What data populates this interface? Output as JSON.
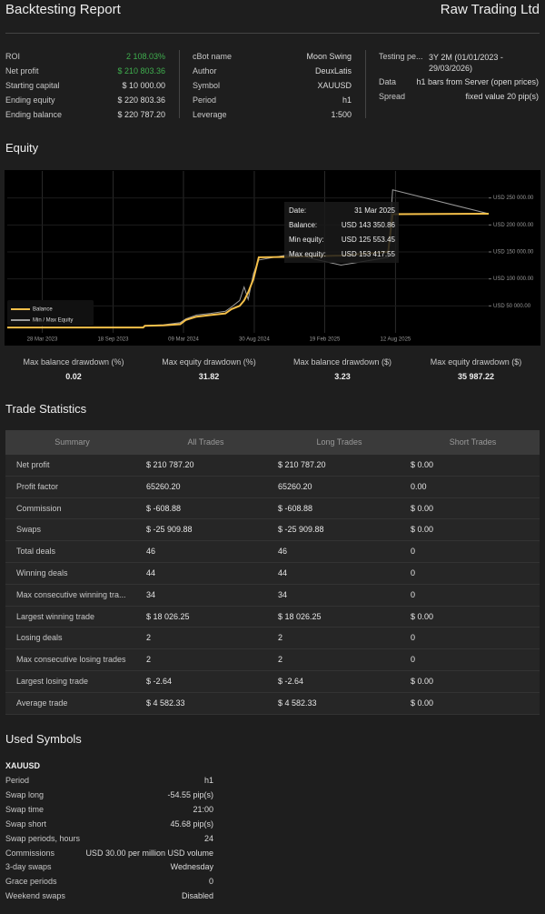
{
  "header": {
    "title": "Backtesting Report",
    "broker": "Raw Trading Ltd"
  },
  "summary": {
    "columns": [
      [
        [
          "ROI",
          "2 108.03%"
        ],
        [
          "Net profit",
          "$ 210 803.36"
        ],
        [
          "Starting capital",
          "$ 10 000.00"
        ],
        [
          "Ending equity",
          "$ 220 803.36"
        ],
        [
          "Ending balance",
          "$ 220 787.20"
        ]
      ],
      [
        [
          "cBot name",
          "Moon Swing"
        ],
        [
          "Author",
          "DeuxLatis"
        ],
        [
          "Symbol",
          "XAUUSD"
        ],
        [
          "Period",
          "h1"
        ],
        [
          "Leverage",
          "1:500"
        ]
      ],
      [
        [
          "Testing pe...",
          "3Y 2M (01/01/2023 - 29/03/2026)"
        ],
        [
          "Data",
          "h1 bars from Server (open prices)"
        ],
        [
          "Spread",
          "fixed value 20 pip(s)"
        ]
      ]
    ]
  },
  "equity_title": "Equity",
  "chart_data": {
    "type": "line",
    "x": [
      "2023-01-01",
      "2023-12-01",
      "2023-12-05",
      "2024-01-20",
      "2024-03-01",
      "2024-03-15",
      "2024-04-10",
      "2024-05-15",
      "2024-06-20",
      "2024-07-05",
      "2024-07-25",
      "2024-08-05",
      "2024-08-15",
      "2024-08-28",
      "2024-09-10",
      "2024-12-01",
      "2025-03-31",
      "2025-07-25",
      "2025-08-05",
      "2026-03-29"
    ],
    "series": [
      {
        "name": "Balance",
        "color": "#f5c04a",
        "values": [
          10000,
          10000,
          13000,
          14000,
          16000,
          24000,
          30000,
          33000,
          36000,
          44000,
          50000,
          60000,
          75000,
          100000,
          140000,
          141000,
          143350.86,
          150000,
          220000,
          220787.2
        ]
      },
      {
        "name": "Min / Max Equity",
        "color": "#9a9a9a",
        "values": [
          10000,
          10000,
          13500,
          15000,
          19000,
          26000,
          33000,
          36000,
          40000,
          48000,
          60000,
          85000,
          62000,
          110000,
          135000,
          146000,
          125553.45,
          140000,
          265000,
          220803.36
        ]
      }
    ],
    "xlim": [
      "2023-01-01",
      "2026-03-29"
    ],
    "xticks": [
      {
        "value": "2023-03-28",
        "label": "28 Mar 2023"
      },
      {
        "value": "2023-09-18",
        "label": "18 Sep 2023"
      },
      {
        "value": "2024-03-09",
        "label": "09 Mar 2024"
      },
      {
        "value": "2024-08-30",
        "label": "30 Aug 2024"
      },
      {
        "value": "2025-02-19",
        "label": "19 Feb 2025"
      },
      {
        "value": "2025-08-12",
        "label": "12 Aug 2025"
      }
    ],
    "ylim": [
      0,
      300000
    ],
    "yticks": [
      {
        "value": 50000,
        "label": "USD 50 000.00"
      },
      {
        "value": 100000,
        "label": "USD 100 000.00"
      },
      {
        "value": 150000,
        "label": "USD 150 000.00"
      },
      {
        "value": 200000,
        "label": "USD 200 000.00"
      },
      {
        "value": 250000,
        "label": "USD 250 000.00"
      }
    ],
    "grid": true,
    "legend": "lower-left",
    "tooltip": [
      [
        "Date:",
        "31 Mar 2025"
      ],
      [
        "Balance:",
        "USD 143 350.86"
      ],
      [
        "Min equity:",
        "USD 125 553.45"
      ],
      [
        "Max equity:",
        "USD 153 417.55"
      ]
    ]
  },
  "drawdowns": [
    [
      "Max balance drawdown (%)",
      "0.02"
    ],
    [
      "Max equity drawdown (%)",
      "31.82"
    ],
    [
      "Max balance drawdown ($)",
      "3.23"
    ],
    [
      "Max equity drawdown ($)",
      "35 987.22"
    ]
  ],
  "trade_statistics": {
    "title": "Trade Statistics",
    "columns": [
      "Summary",
      "All Trades",
      "Long Trades",
      "Short Trades"
    ],
    "rows": [
      [
        "Net profit",
        "$ 210 787.20",
        "$ 210 787.20",
        "$ 0.00"
      ],
      [
        "Profit factor",
        "65260.20",
        "65260.20",
        "0.00"
      ],
      [
        "Commission",
        "$ -608.88",
        "$ -608.88",
        "$ 0.00"
      ],
      [
        "Swaps",
        "$ -25 909.88",
        "$ -25 909.88",
        "$ 0.00"
      ],
      [
        "Total deals",
        "46",
        "46",
        "0"
      ],
      [
        "Winning deals",
        "44",
        "44",
        "0"
      ],
      [
        "Max consecutive winning tra...",
        "34",
        "34",
        "0"
      ],
      [
        "Largest winning trade",
        "$ 18 026.25",
        "$ 18 026.25",
        "$ 0.00"
      ],
      [
        "Losing deals",
        "2",
        "2",
        "0"
      ],
      [
        "Max consecutive losing trades",
        "2",
        "2",
        "0"
      ],
      [
        "Largest losing trade",
        "$ -2.64",
        "$ -2.64",
        "$ 0.00"
      ],
      [
        "Average trade",
        "$ 4 582.33",
        "$ 4 582.33",
        "$ 0.00"
      ]
    ]
  },
  "used_symbols": {
    "title": "Used Symbols",
    "symbol": "XAUUSD",
    "rows": [
      [
        "Period",
        "h1"
      ],
      [
        "Swap long",
        "-54.55 pip(s)"
      ],
      [
        "Swap time",
        "21:00"
      ],
      [
        "Swap short",
        "45.68 pip(s)"
      ],
      [
        "Swap periods, hours",
        "24"
      ],
      [
        "Commissions",
        "USD 30.00 per million USD volume"
      ],
      [
        "3-day swaps",
        "Wednesday"
      ],
      [
        "Grace periods",
        "0"
      ],
      [
        "Weekend swaps",
        "Disabled"
      ]
    ]
  }
}
